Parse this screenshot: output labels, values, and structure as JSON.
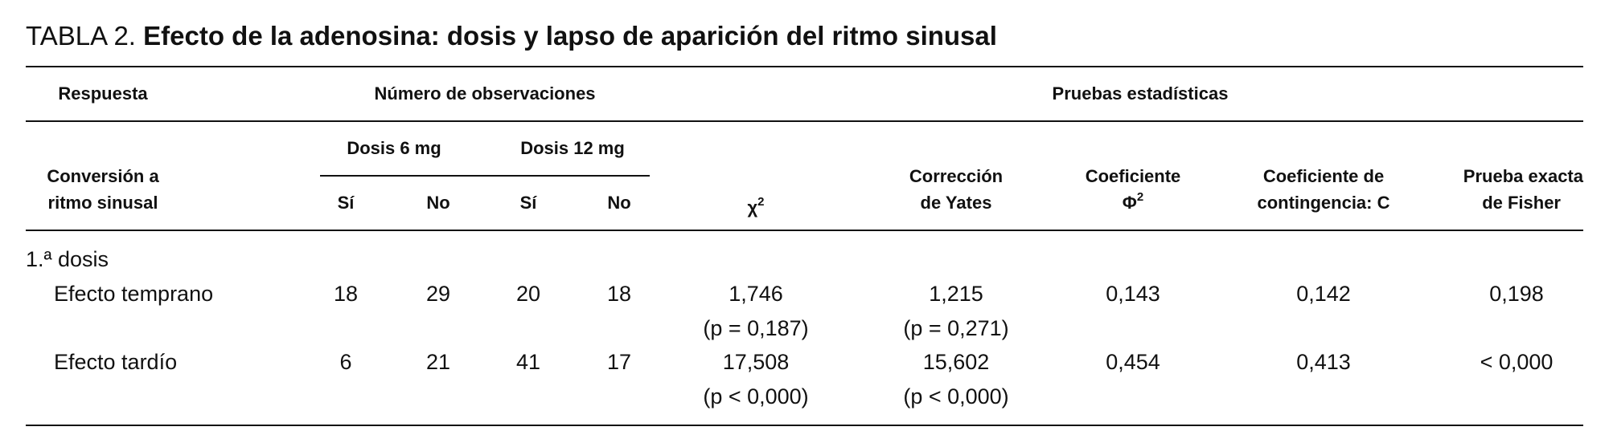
{
  "title": {
    "label": "TABLA 2.",
    "text": "Efecto de la adenosina: dosis y lapso de aparición del ritmo sinusal"
  },
  "header": {
    "respuesta": "Respuesta",
    "observaciones": "Número de observaciones",
    "pruebas": "Pruebas estadísticas",
    "conversion": [
      "Conversión a",
      "ritmo sinusal"
    ],
    "dosis": [
      "Dosis 6 mg",
      "Dosis 12 mg"
    ],
    "subcolumns": [
      "Sí",
      "No",
      "Sí",
      "No"
    ],
    "chi": {
      "symbol": "χ",
      "sup": "2"
    },
    "yates": [
      "Corrección",
      "de Yates"
    ],
    "phi": {
      "line": "Coeficiente",
      "symbol": "Φ",
      "sup": "2"
    },
    "contingencia": [
      "Coeficiente de",
      "contingencia: C"
    ],
    "fisher": [
      "Prueba exacta",
      "de Fisher"
    ]
  },
  "table": {
    "group": "1.ª dosis",
    "rows": [
      {
        "label": "Efecto temprano",
        "counts": [
          "18",
          "29",
          "20",
          "18"
        ],
        "chi": [
          "1,746",
          "(p = 0,187)"
        ],
        "yates": [
          "1,215",
          "(p = 0,271)"
        ],
        "phi": "0,143",
        "c": "0,142",
        "fisher": "0,198"
      },
      {
        "label": "Efecto tardío",
        "counts": [
          "6",
          "21",
          "41",
          "17"
        ],
        "chi": [
          "17,508",
          "(p < 0,000)"
        ],
        "yates": [
          "15,602",
          "(p < 0,000)"
        ],
        "phi": "0,454",
        "c": "0,413",
        "fisher": "< 0,000"
      }
    ]
  }
}
